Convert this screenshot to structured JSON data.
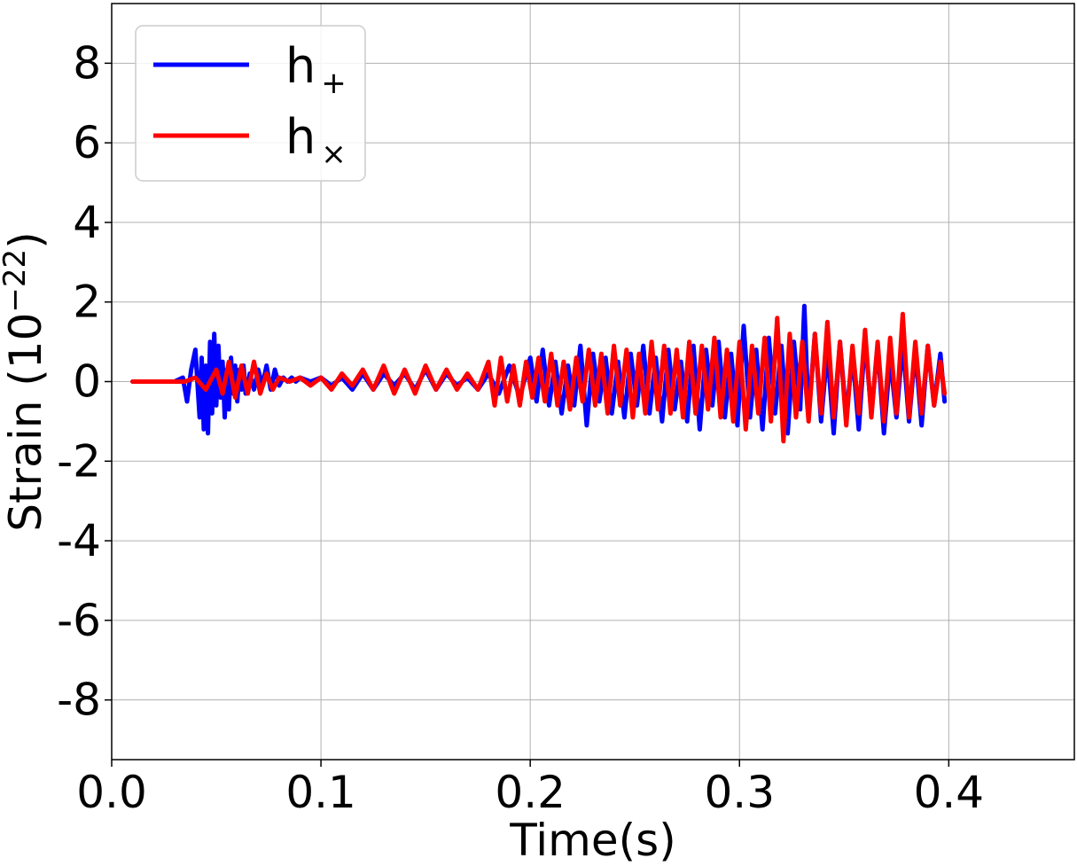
{
  "chart_data": {
    "type": "line",
    "title": "",
    "xlabel": "Time(s)",
    "ylabel": "Strain (10",
    "ylabel_exponent": "−22",
    "ylabel_close": ")",
    "xlim": [
      0.0,
      0.46
    ],
    "ylim": [
      -9.5,
      9.5
    ],
    "grid": true,
    "legend_position": "top-left",
    "x_ticks": [
      0.0,
      0.1,
      0.2,
      0.3,
      0.4
    ],
    "x_tick_labels": [
      "0.0",
      "0.1",
      "0.2",
      "0.3",
      "0.4"
    ],
    "y_ticks": [
      8,
      6,
      4,
      2,
      0,
      -2,
      -4,
      -6,
      -8
    ],
    "y_tick_labels": [
      "8",
      "6",
      "4",
      "2",
      "0",
      "-2",
      "-4",
      "-6",
      "-8"
    ],
    "series": [
      {
        "name": "h",
        "subscript": "+",
        "color": "#0000ff",
        "x": [
          0.01,
          0.03,
          0.034,
          0.036,
          0.038,
          0.04,
          0.042,
          0.043,
          0.044,
          0.045,
          0.046,
          0.047,
          0.048,
          0.049,
          0.05,
          0.051,
          0.052,
          0.053,
          0.054,
          0.055,
          0.056,
          0.057,
          0.058,
          0.059,
          0.06,
          0.061,
          0.062,
          0.063,
          0.064,
          0.066,
          0.068,
          0.07,
          0.072,
          0.074,
          0.076,
          0.078,
          0.08,
          0.082,
          0.084,
          0.086,
          0.088,
          0.09,
          0.095,
          0.1,
          0.105,
          0.11,
          0.115,
          0.12,
          0.125,
          0.13,
          0.135,
          0.14,
          0.145,
          0.15,
          0.155,
          0.16,
          0.165,
          0.17,
          0.175,
          0.18,
          0.185,
          0.19,
          0.195,
          0.2,
          0.203,
          0.206,
          0.209,
          0.212,
          0.215,
          0.218,
          0.221,
          0.224,
          0.227,
          0.23,
          0.233,
          0.236,
          0.239,
          0.242,
          0.245,
          0.248,
          0.251,
          0.254,
          0.257,
          0.26,
          0.263,
          0.266,
          0.269,
          0.272,
          0.275,
          0.278,
          0.281,
          0.284,
          0.287,
          0.29,
          0.293,
          0.296,
          0.299,
          0.302,
          0.305,
          0.308,
          0.311,
          0.314,
          0.317,
          0.32,
          0.323,
          0.326,
          0.329,
          0.331,
          0.333,
          0.336,
          0.339,
          0.342,
          0.345,
          0.348,
          0.351,
          0.354,
          0.357,
          0.36,
          0.363,
          0.366,
          0.369,
          0.372,
          0.375,
          0.378,
          0.381,
          0.384,
          0.387,
          0.39,
          0.393,
          0.396,
          0.398
        ],
        "y": [
          0.0,
          0.0,
          0.1,
          -0.5,
          0.3,
          0.8,
          -0.9,
          0.6,
          -1.2,
          0.4,
          -1.3,
          1.0,
          -0.8,
          1.2,
          -0.6,
          0.9,
          -0.4,
          0.5,
          -0.9,
          0.3,
          -0.7,
          0.6,
          -0.3,
          0.4,
          -0.5,
          0.3,
          -0.2,
          0.4,
          -0.3,
          0.2,
          -0.2,
          0.3,
          -0.1,
          0.4,
          -0.2,
          0.3,
          -0.1,
          0.1,
          0.0,
          0.1,
          0.0,
          0.1,
          0.0,
          0.1,
          -0.1,
          0.1,
          -0.2,
          0.2,
          -0.2,
          0.2,
          -0.1,
          0.2,
          -0.2,
          0.3,
          -0.2,
          0.2,
          -0.1,
          0.1,
          -0.2,
          0.2,
          -0.3,
          0.4,
          -0.4,
          0.6,
          -0.5,
          0.8,
          -0.6,
          0.5,
          -0.8,
          0.4,
          -0.6,
          0.9,
          -1.1,
          0.7,
          -0.5,
          0.6,
          -0.8,
          0.5,
          -0.9,
          0.7,
          -0.6,
          0.9,
          -0.8,
          0.6,
          -1.0,
          0.8,
          -0.7,
          0.5,
          -1.0,
          0.9,
          -1.2,
          0.8,
          -0.6,
          1.0,
          -0.9,
          0.7,
          -1.1,
          1.4,
          -0.9,
          0.8,
          -1.2,
          1.1,
          -0.8,
          0.9,
          -1.3,
          1.0,
          -0.7,
          1.9,
          -0.9,
          1.2,
          -1.0,
          0.8,
          -1.3,
          1.0,
          -0.9,
          0.7,
          -1.2,
          1.1,
          -0.8,
          0.9,
          -1.3,
          0.6,
          -0.9,
          1.0,
          -1.0,
          0.8,
          -1.1,
          0.9,
          -0.6,
          0.7,
          -0.5
        ]
      },
      {
        "name": "h",
        "subscript": "×",
        "color": "#ff0000",
        "x": [
          0.01,
          0.035,
          0.04,
          0.045,
          0.05,
          0.053,
          0.056,
          0.059,
          0.062,
          0.065,
          0.068,
          0.071,
          0.074,
          0.077,
          0.08,
          0.085,
          0.09,
          0.095,
          0.1,
          0.105,
          0.11,
          0.115,
          0.12,
          0.125,
          0.13,
          0.135,
          0.14,
          0.145,
          0.15,
          0.155,
          0.16,
          0.165,
          0.17,
          0.175,
          0.18,
          0.183,
          0.186,
          0.189,
          0.192,
          0.195,
          0.198,
          0.201,
          0.204,
          0.207,
          0.21,
          0.213,
          0.216,
          0.219,
          0.222,
          0.225,
          0.228,
          0.231,
          0.234,
          0.237,
          0.24,
          0.243,
          0.246,
          0.249,
          0.252,
          0.255,
          0.258,
          0.261,
          0.264,
          0.267,
          0.27,
          0.273,
          0.276,
          0.279,
          0.282,
          0.285,
          0.288,
          0.291,
          0.294,
          0.297,
          0.3,
          0.303,
          0.306,
          0.309,
          0.312,
          0.315,
          0.318,
          0.321,
          0.324,
          0.327,
          0.33,
          0.333,
          0.336,
          0.339,
          0.342,
          0.345,
          0.348,
          0.351,
          0.354,
          0.357,
          0.36,
          0.363,
          0.366,
          0.369,
          0.372,
          0.375,
          0.378,
          0.381,
          0.384,
          0.387,
          0.39,
          0.393,
          0.396,
          0.398
        ],
        "y": [
          0.0,
          0.0,
          0.1,
          -0.2,
          0.3,
          -0.3,
          0.5,
          -0.4,
          0.4,
          -0.3,
          0.5,
          -0.3,
          0.2,
          -0.2,
          0.1,
          0.0,
          0.1,
          -0.1,
          0.1,
          -0.2,
          0.2,
          -0.1,
          0.3,
          -0.2,
          0.4,
          -0.3,
          0.3,
          -0.3,
          0.4,
          -0.2,
          0.3,
          -0.2,
          0.2,
          -0.2,
          0.5,
          -0.6,
          0.6,
          -0.5,
          0.4,
          -0.6,
          0.5,
          -0.4,
          0.6,
          -0.5,
          0.7,
          -0.6,
          0.5,
          -0.7,
          0.6,
          -0.5,
          0.8,
          -0.6,
          0.7,
          -0.8,
          0.9,
          -0.6,
          0.8,
          -0.9,
          0.7,
          -0.8,
          1.0,
          -0.7,
          0.9,
          -0.8,
          0.8,
          -0.9,
          1.0,
          -0.8,
          0.9,
          -0.7,
          1.1,
          -0.9,
          0.8,
          -1.0,
          1.0,
          -1.2,
          0.9,
          -0.8,
          1.1,
          -1.0,
          1.6,
          -1.5,
          1.2,
          -0.9,
          1.0,
          -1.0,
          1.2,
          -0.8,
          1.5,
          -0.9,
          1.0,
          -1.1,
          0.9,
          -0.8,
          1.3,
          -0.9,
          1.0,
          -1.0,
          1.1,
          -0.8,
          1.7,
          -0.9,
          1.0,
          -0.8,
          0.9,
          -0.6,
          0.5,
          -0.3
        ]
      }
    ]
  }
}
